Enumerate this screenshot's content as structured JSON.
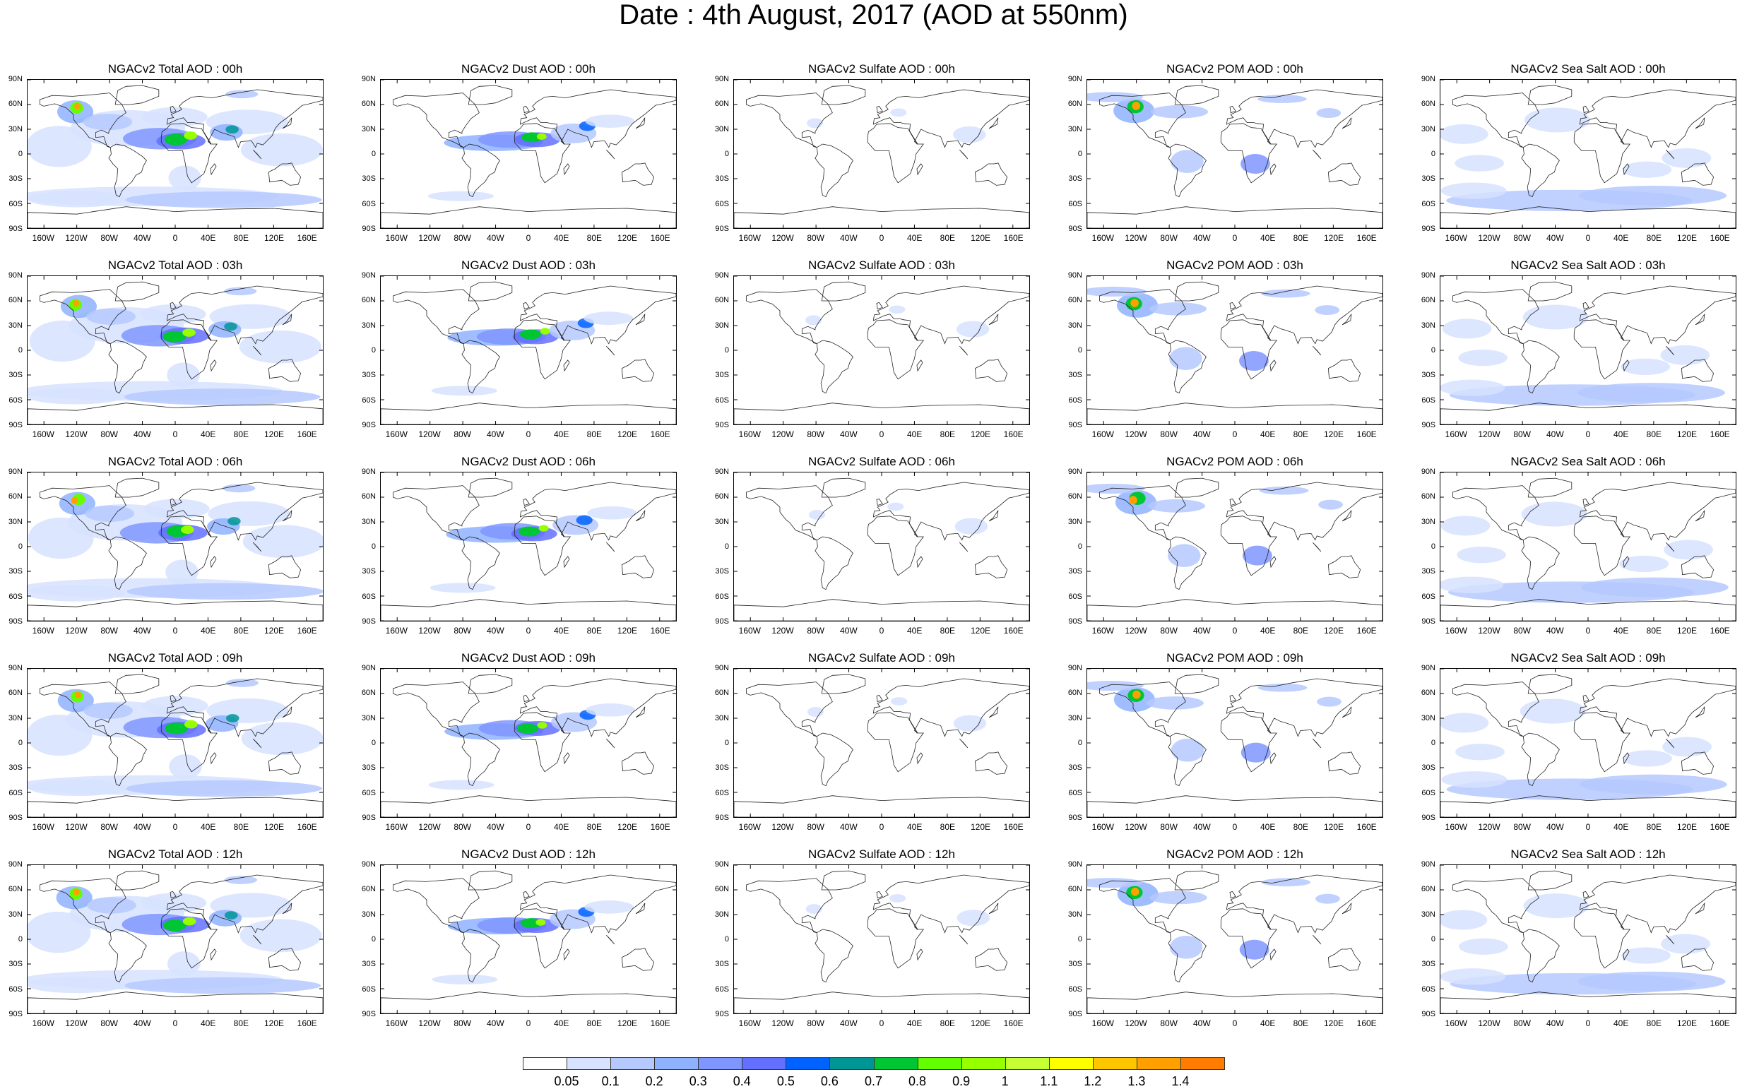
{
  "title": "Date : 4th August, 2017 (AOD at 550nm)",
  "lat_labels": [
    "90N",
    "60N",
    "30N",
    "0",
    "30S",
    "60S",
    "90S"
  ],
  "lon_labels": [
    "160W",
    "120W",
    "80W",
    "40W",
    "0",
    "40E",
    "80E",
    "120E",
    "160E"
  ],
  "colorbar": {
    "colors": [
      "#ffffff",
      "#d6e2ff",
      "#b5c9ff",
      "#8eb2ff",
      "#7f96ff",
      "#6370ff",
      "#0063ff",
      "#009696",
      "#00c633",
      "#63ff00",
      "#96ff00",
      "#c6ff33",
      "#ffff00",
      "#ffc600",
      "#ffa000",
      "#ff7c00",
      "#ff1900"
    ],
    "labels": [
      "0.05",
      "0.1",
      "0.2",
      "0.3",
      "0.4",
      "0.5",
      "0.6",
      "0.7",
      "0.8",
      "0.9",
      "1",
      "1.1",
      "1.2",
      "1.3",
      "1.4"
    ]
  },
  "rows": [
    [
      "NGACv2 Total AOD : 00h",
      "NGACv2 Dust AOD : 00h",
      "NGACv2 Sulfate AOD : 00h",
      "NGACv2 POM AOD : 00h",
      "NGACv2 Sea Salt AOD : 00h"
    ],
    [
      "NGACv2 Total AOD : 03h",
      "NGACv2 Dust AOD : 03h",
      "NGACv2 Sulfate AOD : 03h",
      "NGACv2 POM AOD : 03h",
      "NGACv2 Sea Salt AOD : 03h"
    ],
    [
      "NGACv2 Total AOD : 06h",
      "NGACv2 Dust AOD : 06h",
      "NGACv2 Sulfate AOD : 06h",
      "NGACv2 POM AOD : 06h",
      "NGACv2 Sea Salt AOD : 06h"
    ],
    [
      "NGACv2 Total AOD : 09h",
      "NGACv2 Dust AOD : 09h",
      "NGACv2 Sulfate AOD : 09h",
      "NGACv2 POM AOD : 09h",
      "NGACv2 Sea Salt  AOD : 09h"
    ],
    [
      "NGACv2 Total AOD : 12h",
      "NGACv2 Dust AOD : 12h",
      "NGACv2 Sulfate AOD : 12h",
      "NGACv2 POM  AOD : 12h",
      "NGACv2 Sea Salt  AOD : 12h"
    ]
  ],
  "species": [
    "total",
    "dust",
    "sulfate",
    "pom",
    "seasalt"
  ]
}
